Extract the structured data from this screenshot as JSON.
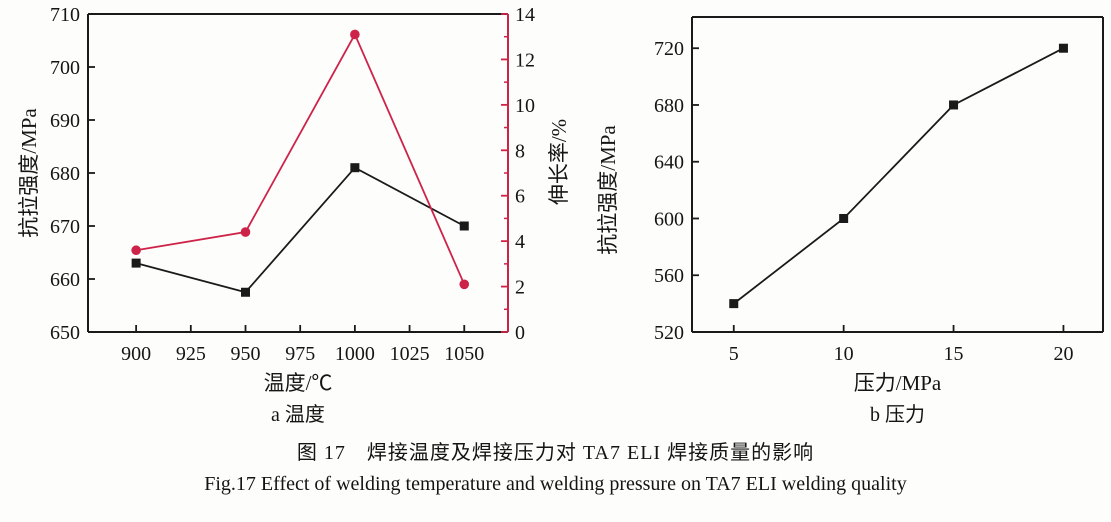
{
  "figure": {
    "caption_zh": "图 17　焊接温度及焊接压力对 TA7 ELI 焊接质量的影响",
    "caption_en": "Fig.17 Effect of welding temperature and welding pressure on TA7 ELI welding quality"
  },
  "colors": {
    "black": "#1a1a1a",
    "red": "#ce2349",
    "text": "#151515"
  },
  "chart_data": [
    {
      "id": "chart-a",
      "type": "line",
      "sublabel": "a 温度",
      "xlabel": "温度/℃",
      "ylabel_left": "抗拉强度/MPa",
      "ylabel_right": "伸长率/%",
      "xlim": [
        878,
        1070
      ],
      "x_ticks": [
        900,
        925,
        950,
        975,
        1000,
        1025,
        1050
      ],
      "ylim_left": [
        650,
        710
      ],
      "yticks_left": [
        650,
        660,
        670,
        680,
        690,
        700,
        710
      ],
      "ylim_right": [
        0,
        14
      ],
      "yticks_right": [
        0,
        2,
        4,
        6,
        8,
        10,
        12,
        14
      ],
      "yticks_right_minor": [
        1,
        3,
        5,
        7,
        9,
        11,
        13
      ],
      "right_axis_red": true,
      "grid": false,
      "legend": "none",
      "series": [
        {
          "name": "tensile-strength",
          "axis": "left",
          "color": "black",
          "marker": "square",
          "x": [
            900,
            950,
            1000,
            1050
          ],
          "y": [
            663,
            657.5,
            681,
            670
          ]
        },
        {
          "name": "elongation",
          "axis": "right",
          "color": "red",
          "marker": "circle",
          "x": [
            900,
            950,
            1000,
            1050
          ],
          "y": [
            3.6,
            4.4,
            13.1,
            2.1
          ]
        }
      ]
    },
    {
      "id": "chart-b",
      "type": "line",
      "sublabel": "b 压力",
      "xlabel": "压力/MPa",
      "ylabel_left": "抗拉强度/MPa",
      "xlim": [
        3.1,
        21.8
      ],
      "x_ticks": [
        5,
        10,
        15,
        20
      ],
      "ylim_left": [
        520,
        742
      ],
      "yticks_left": [
        520,
        560,
        600,
        640,
        680,
        720
      ],
      "right_axis_red": false,
      "grid": false,
      "legend": "none",
      "series": [
        {
          "name": "tensile-strength",
          "axis": "left",
          "color": "black",
          "marker": "square",
          "x": [
            5,
            10,
            15,
            20
          ],
          "y": [
            540,
            600,
            680,
            720
          ]
        }
      ]
    }
  ]
}
